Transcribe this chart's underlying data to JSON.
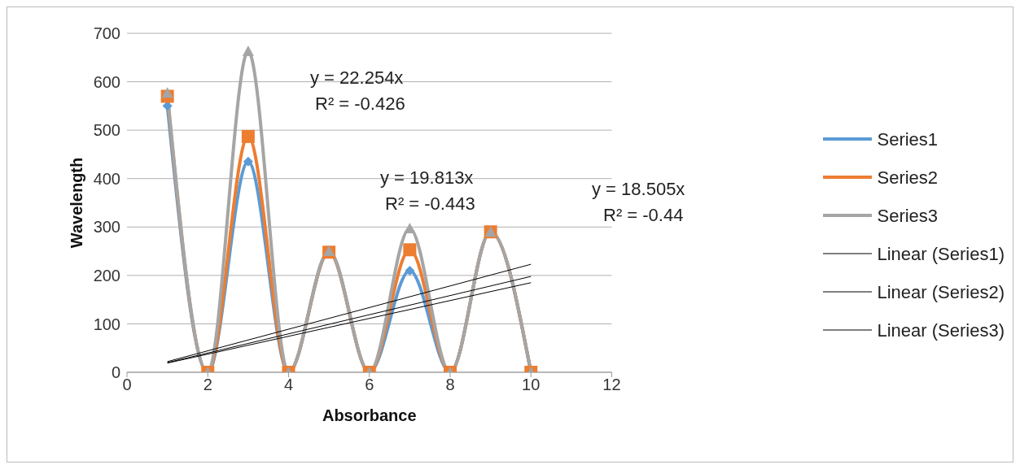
{
  "chart_data": {
    "type": "line",
    "xlabel": "Absorbance",
    "ylabel": "Wavelength",
    "xlim": [
      0,
      12
    ],
    "xticks": [
      0,
      2,
      4,
      6,
      8,
      10,
      12
    ],
    "ylim": [
      0,
      700
    ],
    "yticks": [
      0,
      100,
      200,
      300,
      400,
      500,
      600,
      700
    ],
    "grid": "y",
    "legend": "right",
    "series": [
      {
        "name": "Series1",
        "color": "#5b9bd5",
        "marker": "diamond",
        "x": [
          1,
          2,
          3,
          4,
          5,
          6,
          7,
          8,
          9,
          10
        ],
        "values": [
          550,
          0,
          435,
          0,
          248,
          0,
          210,
          0,
          290,
          0
        ]
      },
      {
        "name": "Series2",
        "color": "#ed7d31",
        "marker": "square",
        "x": [
          1,
          2,
          3,
          4,
          5,
          6,
          7,
          8,
          9,
          10
        ],
        "values": [
          570,
          0,
          487,
          0,
          248,
          0,
          253,
          0,
          290,
          0
        ]
      },
      {
        "name": "Series3",
        "color": "#a5a5a5",
        "marker": "triangle",
        "x": [
          1,
          2,
          3,
          4,
          5,
          6,
          7,
          8,
          9,
          10
        ],
        "values": [
          577,
          0,
          663,
          0,
          250,
          0,
          297,
          0,
          290,
          0
        ]
      },
      {
        "name": "Linear (Series1)",
        "color": "#000000",
        "marker": "none",
        "x": [
          1,
          10
        ],
        "values": [
          19,
          185
        ]
      },
      {
        "name": "Linear (Series2)",
        "color": "#000000",
        "marker": "none",
        "x": [
          1,
          10
        ],
        "values": [
          20,
          198
        ]
      },
      {
        "name": "Linear (Series3)",
        "color": "#000000",
        "marker": "none",
        "x": [
          1,
          10
        ],
        "values": [
          22,
          223
        ]
      }
    ],
    "annotations": [
      "y = 22.254x",
      "R² = -0.426",
      "y = 19.813x",
      "R² = -0.443",
      "y = 18.505x",
      "R² = -0.44"
    ]
  }
}
